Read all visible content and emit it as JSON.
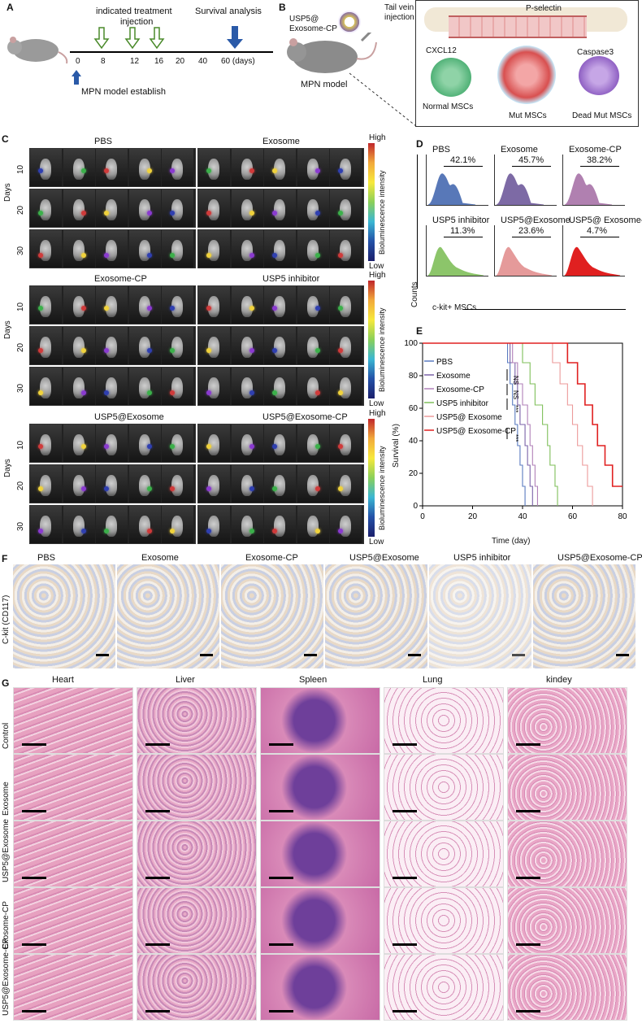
{
  "panelA": {
    "label": "A",
    "treatment": "indicated treatment",
    "injection": "injection",
    "survival": "Survival analysis",
    "ticks": [
      "0",
      "8",
      "12",
      "16",
      "20",
      "40",
      "60 (days)"
    ],
    "establish": "MPN model establish"
  },
  "panelB": {
    "label": "B",
    "agent": "USP5@",
    "agent2": "Exosome-CP",
    "tail": "Tail vein",
    "tail2": "injection",
    "model": "MPN model",
    "pselectin": "P-selectin",
    "cxcl12": "CXCL12",
    "normal": "Normal MSCs",
    "mut": "Mut MSCs",
    "caspase": "Caspase3",
    "dead": "Dead Mut MSCs"
  },
  "panelC": {
    "label": "C",
    "groups": [
      [
        "PBS",
        "Exosome"
      ],
      [
        "Exosome-CP",
        "USP5 inhibitor"
      ],
      [
        "USP5@Exosome",
        "USP5@Exosome-CP"
      ]
    ],
    "days": [
      "10",
      "20",
      "30"
    ],
    "daysTitle": "Days",
    "high": "High",
    "low": "Low",
    "barTitle": "Bioluminescence intensity"
  },
  "panelD": {
    "label": "D",
    "ylabel": "Counts",
    "xlabel": "c-kit+ MSCs",
    "hists": [
      {
        "name": "PBS",
        "pct": "42.1%",
        "color": "#5878b8"
      },
      {
        "name": "Exosome",
        "pct": "45.7%",
        "color": "#7d6aa5"
      },
      {
        "name": "Exosome-CP",
        "pct": "38.2%",
        "color": "#b080b0"
      },
      {
        "name": "USP5 inhibitor",
        "pct": "11.3%",
        "color": "#8cc56a"
      },
      {
        "name": "USP5@Exosome",
        "pct": "23.6%",
        "color": "#e59a9a"
      },
      {
        "name": "USP5@ Exosome-CP",
        "pct": "4.7%",
        "color": "#e02020"
      }
    ]
  },
  "panelE": {
    "label": "E",
    "ylabel": "Survival (%)",
    "xlabel": "Time (day)"
  },
  "chart_data": {
    "type": "line",
    "xlabel": "Time (day)",
    "ylabel": "Survival (%)",
    "xlim": [
      0,
      80
    ],
    "ylim": [
      0,
      100
    ],
    "xticks": [
      "0",
      "20",
      "40",
      "60",
      "80"
    ],
    "yticks": [
      "0",
      "20",
      "40",
      "60",
      "80",
      "100"
    ],
    "series": [
      {
        "name": "PBS",
        "color": "#5a7bc0",
        "steps": [
          [
            0,
            100
          ],
          [
            34,
            100
          ],
          [
            34,
            88
          ],
          [
            35,
            75
          ],
          [
            36,
            62
          ],
          [
            37,
            50
          ],
          [
            38,
            37
          ],
          [
            39,
            25
          ],
          [
            40,
            12
          ],
          [
            41,
            0
          ]
        ]
      },
      {
        "name": "Exosome",
        "color": "#7a62a8",
        "steps": [
          [
            0,
            100
          ],
          [
            35,
            100
          ],
          [
            35,
            88
          ],
          [
            37,
            75
          ],
          [
            38,
            62
          ],
          [
            39,
            50
          ],
          [
            41,
            37
          ],
          [
            42,
            25
          ],
          [
            43,
            12
          ],
          [
            44,
            0
          ]
        ]
      },
      {
        "name": "Exosome-CP",
        "color": "#b080b8",
        "steps": [
          [
            0,
            100
          ],
          [
            36,
            100
          ],
          [
            36,
            88
          ],
          [
            38,
            75
          ],
          [
            40,
            62
          ],
          [
            42,
            50
          ],
          [
            43,
            37
          ],
          [
            44,
            25
          ],
          [
            45,
            12
          ],
          [
            46,
            0
          ]
        ]
      },
      {
        "name": "USP5 inhibitor",
        "color": "#7fbf5a",
        "steps": [
          [
            0,
            100
          ],
          [
            40,
            100
          ],
          [
            40,
            88
          ],
          [
            43,
            75
          ],
          [
            45,
            62
          ],
          [
            48,
            50
          ],
          [
            50,
            37
          ],
          [
            51,
            25
          ],
          [
            53,
            12
          ],
          [
            54,
            0
          ]
        ]
      },
      {
        "name": "USP5@ Exosome",
        "color": "#ec9a9a",
        "steps": [
          [
            0,
            100
          ],
          [
            52,
            100
          ],
          [
            52,
            88
          ],
          [
            55,
            75
          ],
          [
            58,
            62
          ],
          [
            60,
            50
          ],
          [
            62,
            37
          ],
          [
            64,
            25
          ],
          [
            66,
            12
          ],
          [
            68,
            0
          ]
        ]
      },
      {
        "name": "USP5@ Exosome-CP",
        "color": "#e02020",
        "steps": [
          [
            0,
            100
          ],
          [
            58,
            100
          ],
          [
            58,
            88
          ],
          [
            62,
            75
          ],
          [
            65,
            62
          ],
          [
            68,
            50
          ],
          [
            70,
            37
          ],
          [
            73,
            25
          ],
          [
            76,
            12
          ],
          [
            80,
            12
          ]
        ]
      }
    ],
    "significance": [
      "NS",
      "NS",
      "***",
      "***"
    ]
  },
  "panelF": {
    "label": "F",
    "ylabel": "C-kit (CD117)",
    "groups": [
      "PBS",
      "Exosome",
      "Exosome-CP",
      "USP5@Exosome",
      "USP5 inhibitor",
      "USP5@Exosome-CP"
    ]
  },
  "panelG": {
    "label": "G",
    "organs": [
      "Heart",
      "Liver",
      "Spleen",
      "Lung",
      "kindey"
    ],
    "rows": [
      "Control",
      "Exosome",
      "USP5@Exosome",
      "Exosome-CP",
      "USP5@Exosome-CP"
    ]
  },
  "colors": {
    "he_pink": "#e7a6c4",
    "he_purple": "#7a4aa0",
    "ihc_brown": "#c8883a"
  }
}
